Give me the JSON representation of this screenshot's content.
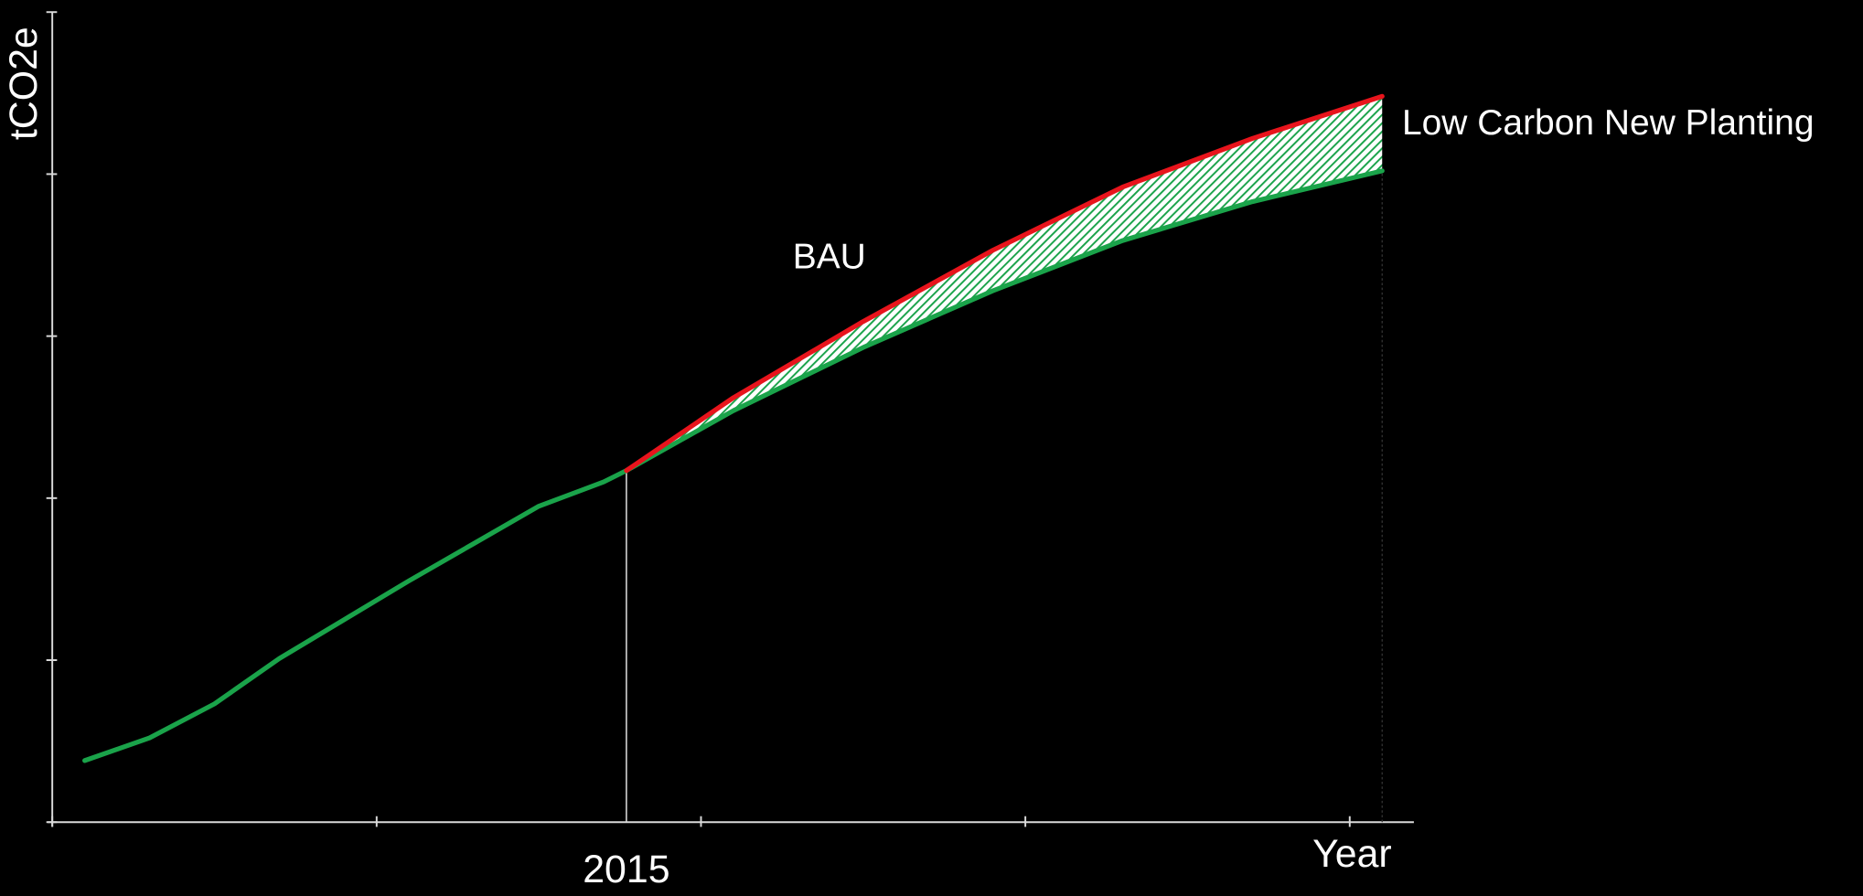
{
  "chart_data": {
    "type": "line",
    "x_label": "Year",
    "y_label": "tCO2e",
    "xlim": [
      0,
      21
    ],
    "ylim": [
      0,
      5
    ],
    "xticks": [
      0,
      5,
      {
        "value": 8.85,
        "label": "2015"
      },
      10,
      15,
      20
    ],
    "yticks": [
      0,
      1,
      2,
      3,
      4,
      5
    ],
    "annotation": "Low Carbon New Planting",
    "series": [
      {
        "name": "BAU",
        "color": "#e8141c",
        "x": [
          8.85,
          10.5,
          12.5,
          14.5,
          16.5,
          18.5,
          20.5
        ],
        "values": [
          2.17,
          2.62,
          3.09,
          3.53,
          3.92,
          4.22,
          4.48
        ]
      },
      {
        "color": "#1aa34a",
        "x": [
          0.5,
          1.5,
          2.5,
          3.5,
          4.5,
          5.5,
          6.5,
          7.5,
          8.5,
          8.85,
          10.5,
          12.5,
          14.5,
          16.5,
          18.5,
          20.5
        ],
        "values": [
          0.38,
          0.52,
          0.73,
          1.01,
          1.25,
          1.49,
          1.72,
          1.95,
          2.1,
          2.17,
          2.54,
          2.93,
          3.28,
          3.59,
          3.83,
          4.02
        ]
      }
    ]
  }
}
